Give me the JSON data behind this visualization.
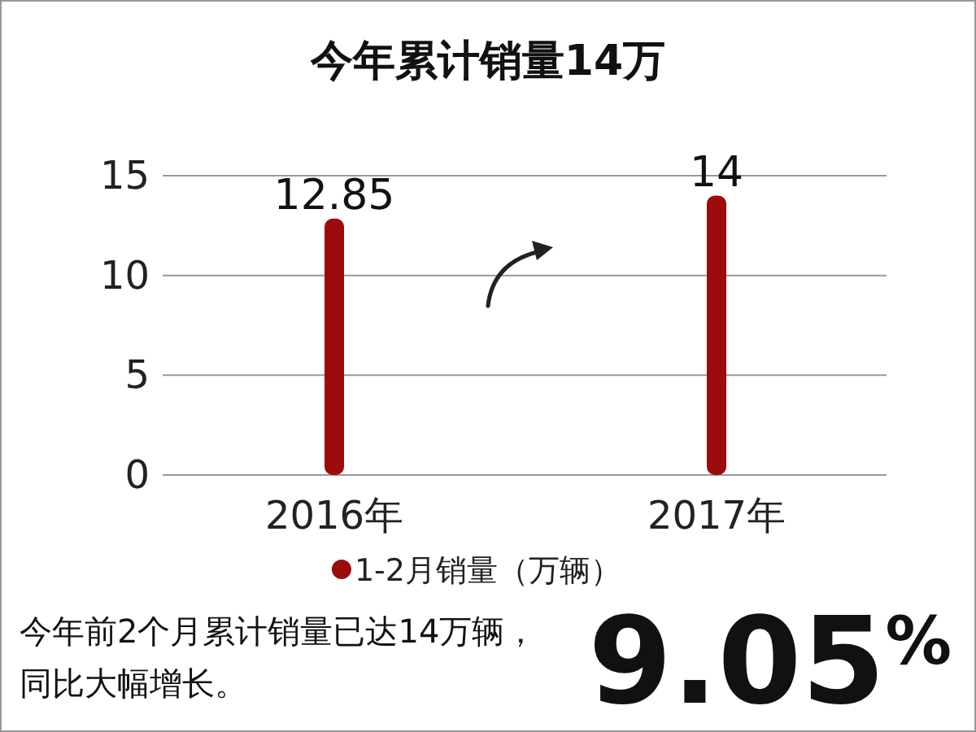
{
  "chart_data": {
    "type": "bar",
    "title": "今年累计销量14万",
    "categories": [
      "2016年",
      "2017年"
    ],
    "series": [
      {
        "name": "1-2月销量（万辆）",
        "color": "#9b0b0b",
        "values": [
          12.85,
          14
        ]
      }
    ],
    "ylim": [
      0,
      15
    ],
    "yticks": [
      0,
      5,
      10,
      15
    ],
    "grid": "y",
    "data_labels": true,
    "legend": "bottom",
    "annotations": [
      "今年前2个月累计销量已达14万辆，同比大幅增长。",
      "9.05$^{%}$"
    ]
  }
}
